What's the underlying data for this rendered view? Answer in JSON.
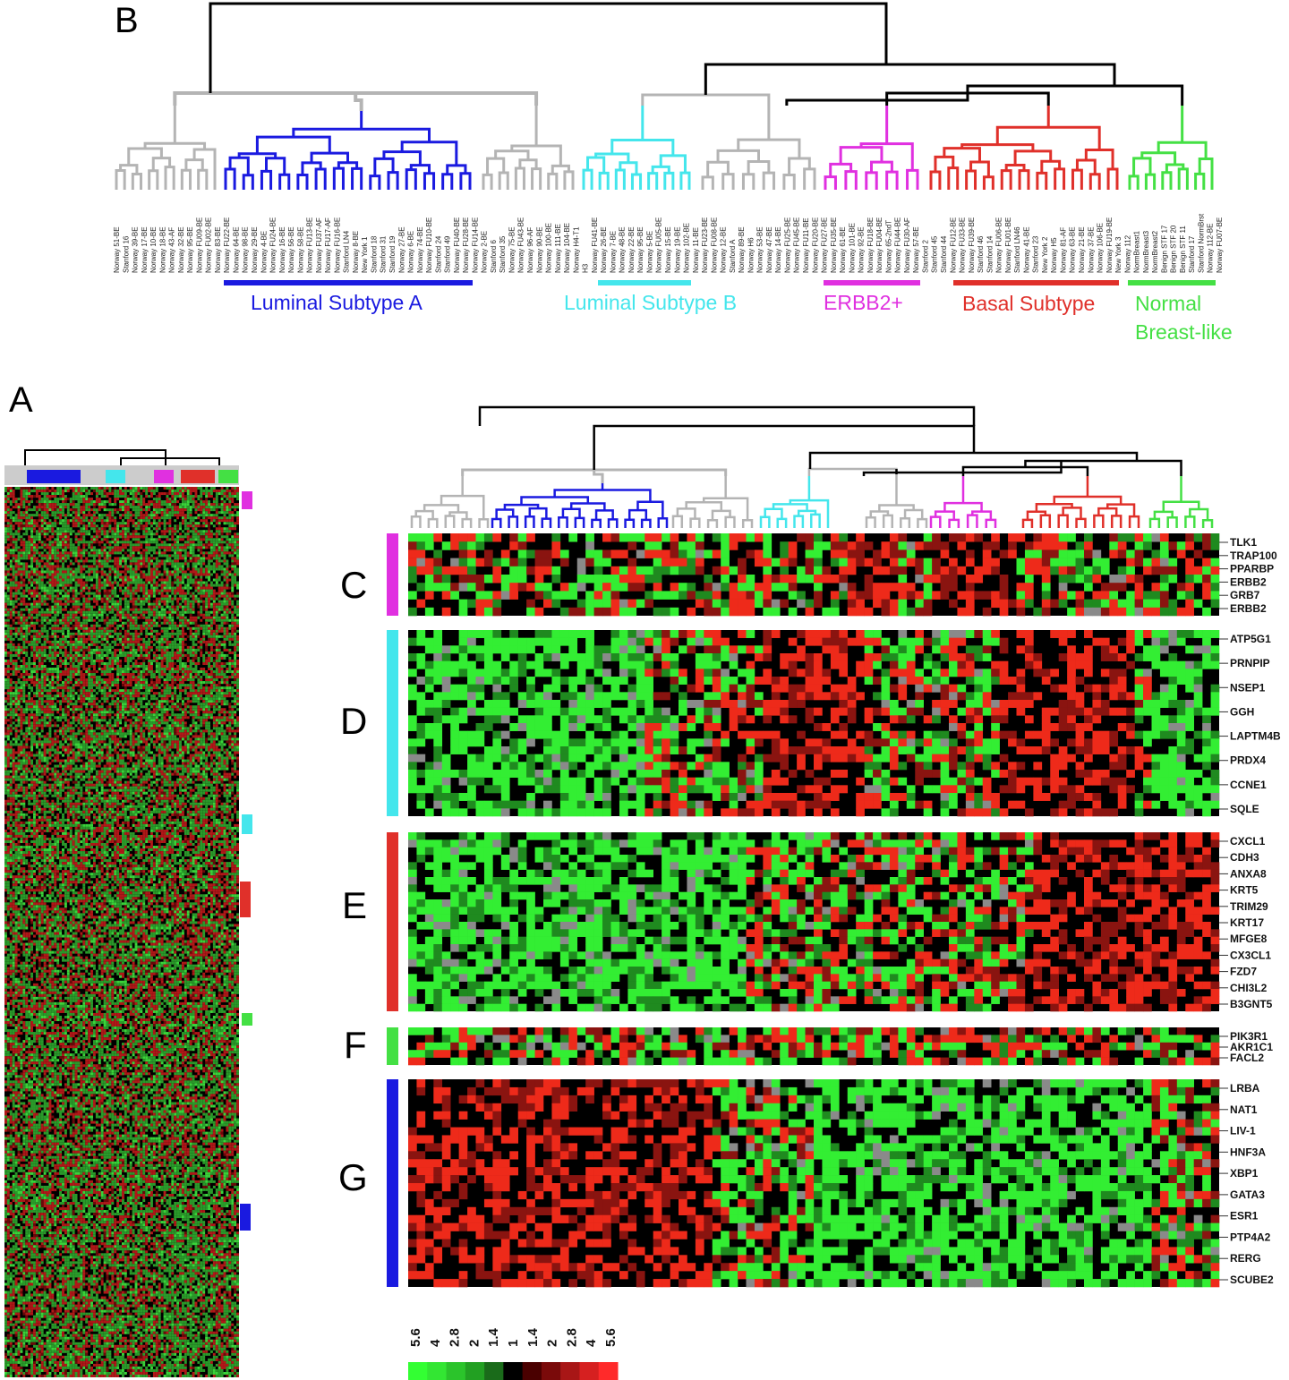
{
  "panel_letters": {
    "a": "A",
    "b": "B",
    "c": "C",
    "d": "D",
    "e": "E",
    "f": "F",
    "g": "G"
  },
  "subtypes": [
    {
      "label": "Luminal Subtype A",
      "color": "#1a1ae0"
    },
    {
      "label": "Luminal Subtype B",
      "color": "#44e6ec"
    },
    {
      "label": "ERBB2+",
      "color": "#e030e0"
    },
    {
      "label": "Basal Subtype",
      "color": "#e0302a"
    },
    {
      "label": "Normal\nBreast-like",
      "color": "#44e044"
    }
  ],
  "sample_labels": [
    "Norway 51-BE",
    "Stanford 16",
    "Norway 39-BE",
    "Norway 17-BE",
    "Norway 10-BE",
    "Norway 18-BE",
    "Norway 43-AF",
    "Norway 32-BE",
    "Norway 95-BE",
    "Norway FU09-BE",
    "Norway FU02-BE",
    "Norway 83-BE",
    "Norway FU22-BE",
    "Norway 64-BE",
    "Norway 98-BE",
    "Norway 29-BE",
    "Norway 4-BE",
    "Norway FU24-BE",
    "Norway 16-BE",
    "Norway 56-BE",
    "Norway 58-BE",
    "Norway FU13-BE",
    "Norway FU37-AF",
    "Norway FU17-AF",
    "Norway FU16-BE",
    "Stanford LN4",
    "Norway 8-BE",
    "New York 1",
    "Stanford 18",
    "Stanford 31",
    "Stanford 19",
    "Norway 27-BE",
    "Norway 6-BE",
    "Norway 74-BE",
    "Norway FU10-BE",
    "Stanford 24",
    "Stanford 49",
    "Norway FU40-BE",
    "Norway FU28-BE",
    "Norway FU14-BE",
    "Norway 2-BE",
    "Stanford 6",
    "Stanford 35",
    "Norway 75-BE",
    "Norway FU43-BE",
    "Norway 96-AF",
    "Norway 90-BE",
    "Norway 100-BE",
    "Norway 111-BE",
    "Norway 104-BE",
    "Norway H4-T1",
    "H3",
    "Norway FU41-BE",
    "Norway 26-BE",
    "Norway 7-BE",
    "Norway 48-BE",
    "Norway 22-BE",
    "Norway 95-BE",
    "Norway 5-BE",
    "Norway FU05-BE",
    "Norway 15-BE",
    "Norway 19-BE",
    "Norway 102-BE",
    "Norway 11-BE",
    "Norway FU23-BE",
    "Norway FU08-BE",
    "Norway 12-BE",
    "Stanford A",
    "Norway 89-BE",
    "Norway H6",
    "Norway 53-BE",
    "Norway 47-BE",
    "Norway 14-BE",
    "Norway FU25-BE",
    "Norway FU45-BE",
    "Norway FU11-BE",
    "Norway FU20-BE",
    "Norway FU27-BE",
    "Norway FU35-BE",
    "Norway 61-BE",
    "Norway 101-BE",
    "Norway 92-BE",
    "Norway FU18-BE",
    "Norway FU04-BE",
    "Norway 65-2ndT",
    "Norway FU44-BE",
    "Norway FU30-AF",
    "Norway 57-BE",
    "Stanford 2",
    "Stanford 45",
    "Stanford 44",
    "Norway FU12-BE",
    "Norway FU33-BE",
    "Norway FU39-BE",
    "Stanford 46",
    "Stanford 14",
    "Norway FU06-BE",
    "Norway FU01-BE",
    "Stanford LN46",
    "Norway 41-BE",
    "Stanford 23",
    "New York 2",
    "Norway H5",
    "Norway 81-AF",
    "Norway 63-BE",
    "Norway 21-BE",
    "Norway 37-BE",
    "Norway 106-BE",
    "Norway FU19-BE",
    "New York 3",
    "Norway 112",
    "NormBreast1",
    "NormBreast3",
    "NormBreast2",
    "Benign STF 17",
    "Benign STF 20",
    "Benign STF 11",
    "Stanford 17",
    "Stanford NormBrst",
    "Norway 112-BE",
    "Norway FU07-BE"
  ],
  "genes": {
    "c": [
      "TLK1",
      "TRAP100",
      "PPARBP",
      "ERBB2",
      "GRB7",
      "ERBB2"
    ],
    "d": [
      "ATP5G1",
      "PRNPIP",
      "NSEP1",
      "GGH",
      "LAPTM4B",
      "PRDX4",
      "CCNE1",
      "SQLE"
    ],
    "e": [
      "CXCL1",
      "CDH3",
      "ANXA8",
      "KRT5",
      "TRIM29",
      "KRT17",
      "MFGE8",
      "CX3CL1",
      "FZD7",
      "CHI3L2",
      "B3GNT5"
    ],
    "f": [
      "PIK3R1",
      "AKR1C1",
      "FACL2"
    ],
    "g": [
      "LRBA",
      "NAT1",
      "LIV-1",
      "HNF3A",
      "XBP1",
      "GATA3",
      "ESR1",
      "PTP4A2",
      "RERG",
      "SCUBE2"
    ]
  },
  "color_scale": {
    "labels": [
      "5.6",
      "4",
      "2.8",
      "2",
      "1.4",
      "1",
      "1.4",
      "2",
      "2.8",
      "4",
      "5.6"
    ],
    "colors": [
      "#33ff33",
      "#33e633",
      "#2bc42b",
      "#22a022",
      "#1a6b1a",
      "#000000",
      "#4a0000",
      "#7a0a0a",
      "#a81616",
      "#d62020",
      "#ff2a2a"
    ]
  },
  "heatmap_colors": {
    "green": "#33ee33",
    "red": "#ee2a1a",
    "black": "#000000",
    "missing": "#8a8a8a"
  }
}
